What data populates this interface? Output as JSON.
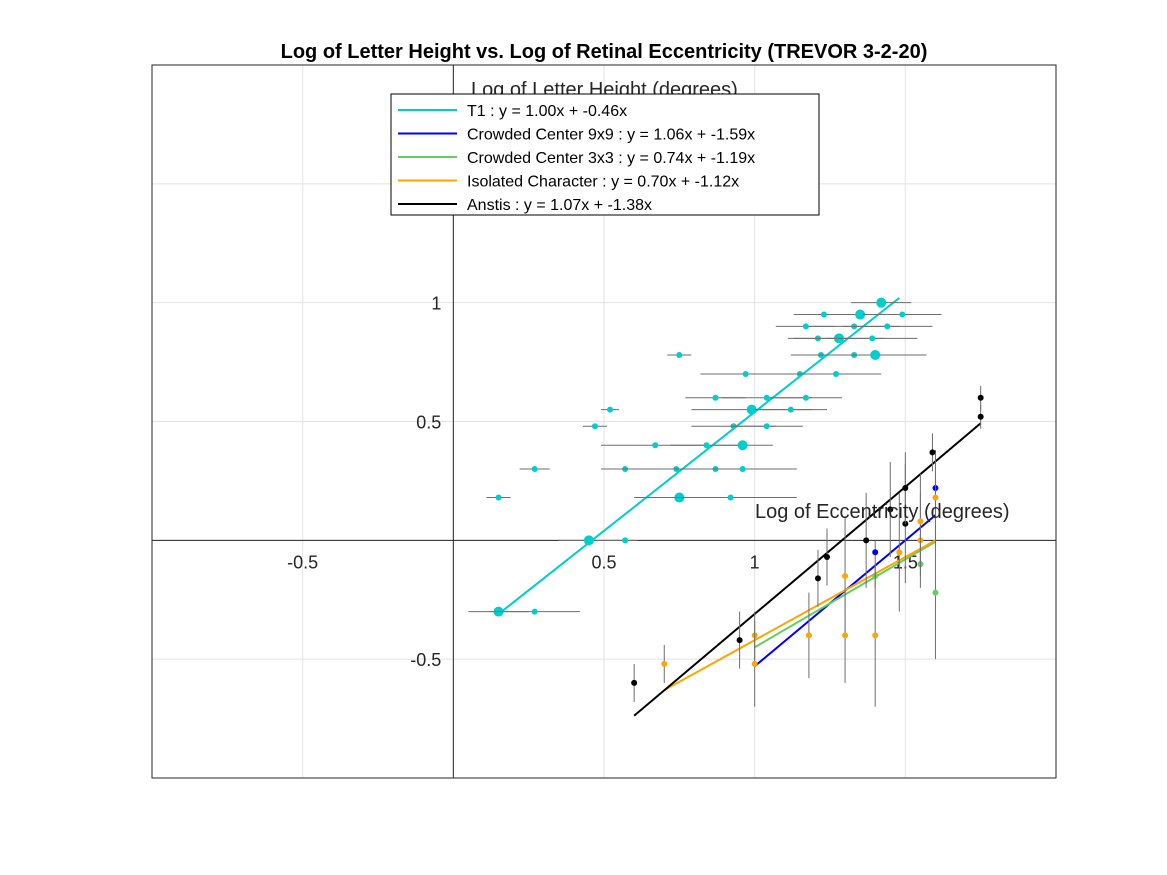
{
  "chart_data": {
    "type": "scatter",
    "title": "Log of Letter Height vs. Log of Retinal Eccentricity (TREVOR 3-2-20)",
    "xlabel": "Log of Eccentricity (degrees)",
    "ylabel": "Log of Letter Height (degrees)",
    "xlim": [
      -1,
      2
    ],
    "ylim": [
      -1,
      2
    ],
    "xticks": [
      -0.5,
      0.5,
      1,
      1.5
    ],
    "yticks": [
      -0.5,
      0.5,
      1
    ],
    "x_tick_labels": [
      "-0.5",
      "0.5",
      "1",
      "1.5"
    ],
    "y_tick_labels": [
      "-0.5",
      "0.5",
      "1"
    ],
    "grid": true,
    "legend_position": "top-center",
    "series": [
      {
        "name": "T1 : y = 1.00x + -0.46x",
        "color": "#00CDCD",
        "fit": {
          "slope": 1.0,
          "intercept": -0.46,
          "x_range": [
            0.15,
            1.48
          ]
        },
        "points": [
          {
            "x": 0.15,
            "y": -0.3,
            "xerr": 0.1,
            "big": true
          },
          {
            "x": 0.27,
            "y": -0.3,
            "xerr": 0.15
          },
          {
            "x": 0.45,
            "y": 0.0,
            "xerr": 0.1,
            "big": true
          },
          {
            "x": 0.57,
            "y": 0.0,
            "xerr": 0.04
          },
          {
            "x": 0.15,
            "y": 0.18,
            "xerr": 0.04
          },
          {
            "x": 0.27,
            "y": 0.3,
            "xerr": 0.05
          },
          {
            "x": 0.57,
            "y": 0.3,
            "xerr": 0.08
          },
          {
            "x": 0.47,
            "y": 0.48,
            "xerr": 0.04
          },
          {
            "x": 0.52,
            "y": 0.55,
            "xerr": 0.03
          },
          {
            "x": 0.67,
            "y": 0.4,
            "xerr": 0.18
          },
          {
            "x": 0.74,
            "y": 0.3,
            "xerr": 0.25
          },
          {
            "x": 0.75,
            "y": 0.18,
            "xerr": 0.15,
            "big": true
          },
          {
            "x": 0.75,
            "y": 0.78,
            "xerr": 0.04
          },
          {
            "x": 0.84,
            "y": 0.4,
            "xerr": 0.12
          },
          {
            "x": 0.87,
            "y": 0.3,
            "xerr": 0.14
          },
          {
            "x": 0.87,
            "y": 0.6,
            "xerr": 0.1
          },
          {
            "x": 0.92,
            "y": 0.18,
            "xerr": 0.22
          },
          {
            "x": 0.93,
            "y": 0.48,
            "xerr": 0.14
          },
          {
            "x": 0.96,
            "y": 0.3,
            "xerr": 0.18
          },
          {
            "x": 0.96,
            "y": 0.4,
            "xerr": 0.1,
            "big": true
          },
          {
            "x": 0.97,
            "y": 0.7,
            "xerr": 0.15
          },
          {
            "x": 0.99,
            "y": 0.55,
            "xerr": 0.2,
            "big": true
          },
          {
            "x": 1.04,
            "y": 0.48,
            "xerr": 0.12
          },
          {
            "x": 1.04,
            "y": 0.6,
            "xerr": 0.15
          },
          {
            "x": 1.12,
            "y": 0.55,
            "xerr": 0.12
          },
          {
            "x": 1.15,
            "y": 0.7,
            "xerr": 0.15
          },
          {
            "x": 1.17,
            "y": 0.6,
            "xerr": 0.12
          },
          {
            "x": 1.17,
            "y": 0.9,
            "xerr": 0.1
          },
          {
            "x": 1.21,
            "y": 0.85,
            "xerr": 0.1
          },
          {
            "x": 1.22,
            "y": 0.78,
            "xerr": 0.1
          },
          {
            "x": 1.23,
            "y": 0.95,
            "xerr": 0.1
          },
          {
            "x": 1.27,
            "y": 0.7,
            "xerr": 0.15
          },
          {
            "x": 1.28,
            "y": 0.85,
            "xerr": 0.15,
            "big": true
          },
          {
            "x": 1.33,
            "y": 0.78,
            "xerr": 0.15
          },
          {
            "x": 1.33,
            "y": 0.9,
            "xerr": 0.15
          },
          {
            "x": 1.35,
            "y": 0.95,
            "xerr": 0.1,
            "big": true
          },
          {
            "x": 1.39,
            "y": 0.85,
            "xerr": 0.15
          },
          {
            "x": 1.4,
            "y": 0.78,
            "xerr": 0.17,
            "big": true
          },
          {
            "x": 1.42,
            "y": 1.0,
            "xerr": 0.1,
            "big": true
          },
          {
            "x": 1.44,
            "y": 0.9,
            "xerr": 0.15
          },
          {
            "x": 1.49,
            "y": 0.95,
            "xerr": 0.13
          }
        ]
      },
      {
        "name": "Crowded Center 9x9 : y = 1.06x + -1.59x",
        "color": "#0000FF",
        "fit": {
          "slope": 1.06,
          "intercept": -1.59,
          "x_range": [
            1.0,
            1.6
          ]
        },
        "points": [
          {
            "x": 1.4,
            "y": -0.05,
            "yerr": 0.05
          },
          {
            "x": 1.6,
            "y": 0.22,
            "yerr": 0.08
          }
        ]
      },
      {
        "name": "Crowded Center 3x3 : y = 0.74x + -1.19x",
        "color": "#66CC66",
        "fit": {
          "slope": 0.74,
          "intercept": -1.19,
          "x_range": [
            1.0,
            1.6
          ]
        },
        "points": [
          {
            "x": 1.4,
            "y": -0.15,
            "yerr": 0.05
          },
          {
            "x": 1.55,
            "y": -0.1,
            "yerr": 0.05
          },
          {
            "x": 1.6,
            "y": -0.22,
            "yerr": 0.28
          }
        ]
      },
      {
        "name": "Isolated Character : y = 0.70x + -1.12x",
        "color": "#FFA500",
        "fit": {
          "slope": 0.7,
          "intercept": -1.12,
          "x_range": [
            0.7,
            1.6
          ]
        },
        "points": [
          {
            "x": 0.7,
            "y": -0.52,
            "yerr": 0.08
          },
          {
            "x": 1.0,
            "y": -0.4,
            "yerr": 0.1
          },
          {
            "x": 1.0,
            "y": -0.52,
            "yerr": 0.18
          },
          {
            "x": 1.18,
            "y": -0.4,
            "yerr": 0.18
          },
          {
            "x": 1.3,
            "y": -0.15,
            "yerr": 0.25
          },
          {
            "x": 1.3,
            "y": -0.4,
            "yerr": 0.2
          },
          {
            "x": 1.4,
            "y": -0.4,
            "yerr": 0.3
          },
          {
            "x": 1.48,
            "y": -0.05,
            "yerr": 0.25
          },
          {
            "x": 1.55,
            "y": 0.0,
            "yerr": 0.2
          },
          {
            "x": 1.55,
            "y": 0.08,
            "yerr": 0.2
          },
          {
            "x": 1.6,
            "y": 0.18,
            "yerr": 0.2
          }
        ]
      },
      {
        "name": "Anstis : y = 1.07x + -1.38x",
        "color": "#000000",
        "fit": {
          "slope": 1.07,
          "intercept": -1.38,
          "x_range": [
            0.6,
            1.75
          ]
        },
        "points": [
          {
            "x": 0.6,
            "y": -0.6,
            "yerr": 0.08
          },
          {
            "x": 0.95,
            "y": -0.42,
            "yerr": 0.12
          },
          {
            "x": 1.21,
            "y": -0.16,
            "yerr": 0.12
          },
          {
            "x": 1.24,
            "y": -0.07,
            "yerr": 0.12
          },
          {
            "x": 1.37,
            "y": 0.0,
            "yerr": 0.2
          },
          {
            "x": 1.45,
            "y": 0.13,
            "yerr": 0.2
          },
          {
            "x": 1.5,
            "y": 0.07,
            "yerr": 0.25
          },
          {
            "x": 1.5,
            "y": 0.22,
            "yerr": 0.15
          },
          {
            "x": 1.59,
            "y": 0.37,
            "yerr": 0.08
          },
          {
            "x": 1.75,
            "y": 0.52,
            "yerr": 0.05
          },
          {
            "x": 1.75,
            "y": 0.6,
            "yerr": 0.05
          }
        ]
      }
    ]
  }
}
